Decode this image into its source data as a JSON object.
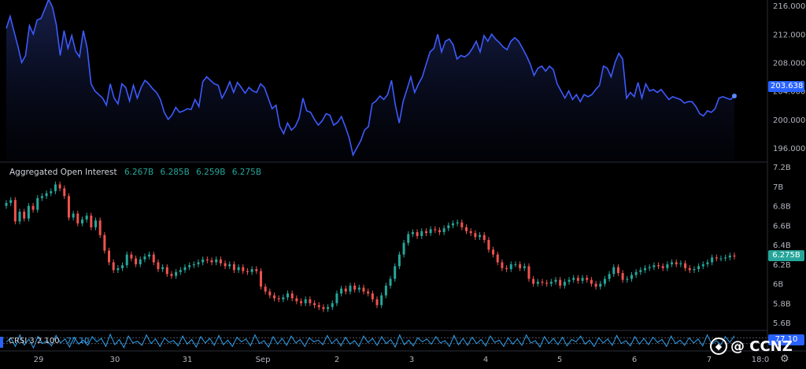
{
  "chart_data": [
    {
      "type": "area",
      "title": "",
      "series": [
        {
          "name": "",
          "color": "#3d5afe"
        }
      ],
      "y_axis_ticks": [
        "216.000",
        "212.000",
        "208.000",
        "204.000",
        "200.000",
        "196.000"
      ],
      "y_axis_values": [
        216,
        212,
        208,
        204,
        200,
        196
      ],
      "ylim": [
        194.0,
        216.8
      ],
      "last_value": "203.638",
      "values": [
        212.8,
        214.5,
        212.4,
        210.3,
        208.0,
        209.0,
        213.2,
        212.0,
        214.0,
        214.2,
        215.5,
        216.9,
        215.8,
        213.3,
        209.0,
        212.5,
        210.0,
        211.8,
        209.6,
        208.8,
        212.5,
        210.0,
        205.0,
        204.0,
        203.5,
        203.0,
        202.0,
        205.0,
        203.0,
        202.2,
        205.0,
        204.5,
        202.6,
        204.8,
        203.0,
        204.5,
        205.5,
        205.0,
        204.3,
        203.8,
        202.8,
        201.0,
        200.0,
        200.6,
        201.7,
        201.0,
        201.2,
        201.5,
        201.4,
        202.8,
        201.8,
        205.3,
        206.0,
        205.5,
        205.0,
        204.8,
        203.0,
        204.0,
        205.3,
        203.8,
        205.2,
        204.5,
        203.7,
        204.5,
        204.0,
        203.8,
        205.0,
        204.5,
        203.0,
        201.5,
        202.0,
        199.0,
        198.0,
        199.5,
        198.5,
        199.0,
        200.2,
        203.0,
        201.2,
        201.0,
        200.0,
        199.2,
        199.8,
        200.8,
        200.6,
        199.2,
        199.6,
        200.4,
        199.0,
        197.4,
        195.0,
        196.0,
        197.0,
        198.5,
        199.0,
        202.2,
        202.6,
        203.3,
        202.8,
        203.5,
        205.5,
        202.0,
        199.5,
        202.5,
        204.2,
        206.0,
        203.8,
        205.0,
        206.0,
        207.8,
        209.5,
        210.0,
        212.0,
        209.5,
        211.0,
        211.3,
        210.5,
        208.5,
        209.0,
        208.8,
        209.2,
        210.0,
        211.0,
        209.5,
        211.8,
        211.0,
        212.0,
        211.3,
        210.8,
        210.2,
        209.8,
        211.0,
        211.5,
        211.0,
        210.0,
        209.0,
        207.8,
        206.2,
        207.2,
        207.5,
        206.8,
        207.5,
        207.0,
        205.0,
        204.0,
        203.0,
        204.0,
        202.8,
        203.5,
        202.5,
        203.5,
        203.2,
        203.5,
        204.2,
        204.8,
        207.5,
        207.2,
        206.0,
        208.0,
        209.3,
        208.5,
        203.0,
        203.8,
        203.2,
        205.2,
        203.0,
        205.0,
        204.0,
        204.2,
        203.8,
        204.2,
        203.5,
        202.8,
        203.2,
        203.0,
        202.8,
        202.3,
        202.5,
        202.5,
        201.8,
        200.8,
        200.5,
        201.2,
        201.0,
        201.5,
        203.0,
        203.2,
        203.0,
        202.8,
        203.3
      ]
    },
    {
      "type": "candlestick",
      "title": "Aggregated Open Interest",
      "legend_values": [
        "6.267B",
        "6.285B",
        "6.259B",
        "6.275B"
      ],
      "y_axis_ticks": [
        "7.2B",
        "7B",
        "6.8B",
        "6.6B",
        "6.4B",
        "6.2B",
        "6B",
        "5.8B",
        "5.6B"
      ],
      "y_axis_values": [
        7.2,
        7.0,
        6.8,
        6.6,
        6.4,
        6.2,
        6.0,
        5.8,
        5.6
      ],
      "ylim": [
        5.52,
        7.25
      ],
      "last_value": "6.275B",
      "up_color": "#26a69a",
      "down_color": "#ef5350",
      "close": [
        6.83,
        6.86,
        6.64,
        6.74,
        6.67,
        6.8,
        6.76,
        6.88,
        6.9,
        6.93,
        6.95,
        7.02,
        6.98,
        6.9,
        6.68,
        6.72,
        6.62,
        6.66,
        6.7,
        6.58,
        6.65,
        6.5,
        6.34,
        6.22,
        6.14,
        6.16,
        6.19,
        6.3,
        6.26,
        6.2,
        6.25,
        6.28,
        6.3,
        6.22,
        6.15,
        6.17,
        6.1,
        6.08,
        6.12,
        6.14,
        6.17,
        6.19,
        6.2,
        6.22,
        6.25,
        6.24,
        6.22,
        6.25,
        6.21,
        6.18,
        6.2,
        6.14,
        6.17,
        6.13,
        6.12,
        6.15,
        6.13,
        5.97,
        5.92,
        5.88,
        5.85,
        5.84,
        5.86,
        5.9,
        5.85,
        5.82,
        5.8,
        5.84,
        5.8,
        5.78,
        5.76,
        5.74,
        5.76,
        5.8,
        5.9,
        5.95,
        5.92,
        5.98,
        5.94,
        5.96,
        5.92,
        5.9,
        5.84,
        5.78,
        5.88,
        5.98,
        6.05,
        6.18,
        6.3,
        6.42,
        6.51,
        6.53,
        6.49,
        6.54,
        6.52,
        6.56,
        6.55,
        6.53,
        6.57,
        6.6,
        6.62,
        6.63,
        6.58,
        6.54,
        6.52,
        6.48,
        6.5,
        6.45,
        6.35,
        6.3,
        6.22,
        6.16,
        6.15,
        6.2,
        6.2,
        6.16,
        6.18,
        6.05,
        6.0,
        6.02,
        6.01,
        6.0,
        6.02,
        6.04,
        5.98,
        6.02,
        6.04,
        6.06,
        6.03,
        6.06,
        6.04,
        6.0,
        5.97,
        6.0,
        6.05,
        6.1,
        6.17,
        6.11,
        6.04,
        6.05,
        6.09,
        6.12,
        6.14,
        6.16,
        6.17,
        6.19,
        6.18,
        6.16,
        6.2,
        6.22,
        6.2,
        6.21,
        6.16,
        6.14,
        6.15,
        6.18,
        6.2,
        6.22,
        6.27,
        6.26,
        6.26,
        6.27,
        6.29,
        6.28
      ]
    },
    {
      "type": "line",
      "title": "CRSI 3 2 100",
      "value_label": "77.10",
      "last_value": "77.10",
      "series": [
        {
          "name": "CRSI",
          "color": "#2ea3f2"
        }
      ],
      "values": [
        55,
        70,
        40,
        80,
        45,
        65,
        35,
        75,
        50,
        60,
        42,
        78,
        52,
        66,
        38,
        72,
        48,
        62,
        44,
        74,
        56,
        68,
        40,
        82,
        46,
        64,
        36,
        76,
        52,
        58,
        44,
        80,
        50,
        66,
        40,
        70,
        54,
        60,
        42,
        76,
        48,
        64,
        38,
        74,
        52,
        68,
        44,
        78,
        46,
        62,
        40,
        72,
        56,
        66,
        42,
        80,
        50,
        60,
        38,
        74,
        48,
        68,
        44,
        76,
        52,
        64,
        40,
        70,
        56,
        62,
        46,
        78,
        50,
        66,
        42,
        72,
        48,
        60,
        40,
        76,
        54,
        68,
        44,
        74,
        50,
        64,
        38,
        80,
        46,
        62,
        42,
        70,
        56,
        66,
        48,
        74,
        52,
        60,
        40,
        78,
        46,
        68,
        44,
        72,
        50,
        64,
        42,
        76,
        54,
        62,
        40,
        70,
        48,
        66,
        44,
        80,
        52,
        60,
        38,
        74,
        50,
        68,
        46,
        72,
        42,
        64,
        56,
        76,
        48,
        62,
        40,
        70,
        52,
        66,
        44,
        78,
        50,
        60,
        42,
        74,
        48,
        68,
        46,
        72,
        54,
        64,
        40,
        76,
        50,
        62,
        44,
        70,
        52,
        66,
        42,
        80,
        48,
        60,
        46,
        74,
        54,
        77
      ]
    }
  ],
  "x_axis": {
    "labels": [
      "29",
      "30",
      "31",
      "Sep",
      "2",
      "3",
      "4",
      "5",
      "6",
      "7",
      "18:0"
    ]
  },
  "watermark": {
    "text": "@ CCNZ"
  },
  "icons": {
    "settings": "gear-icon",
    "brand": "binance-icon"
  }
}
